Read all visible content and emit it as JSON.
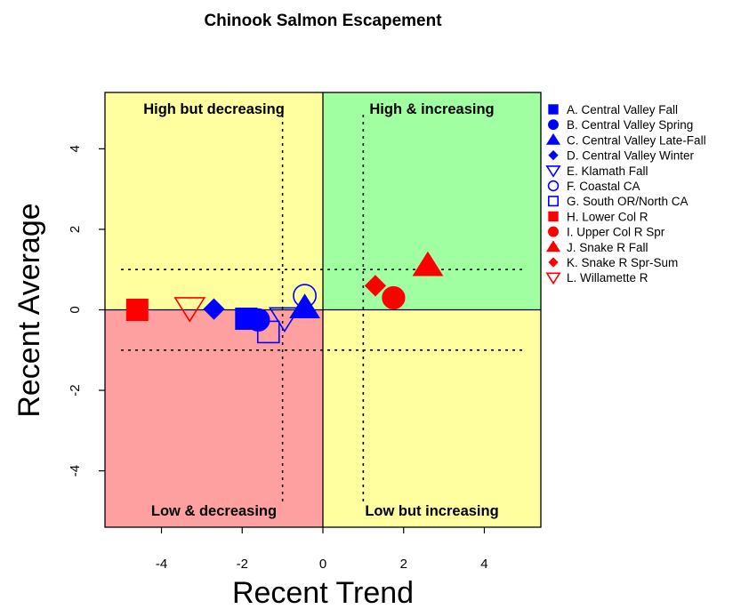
{
  "chart_data": {
    "type": "scatter",
    "title": "Chinook Salmon Escapement",
    "xlabel": "Recent Trend",
    "ylabel": "Recent Average",
    "xlim": [
      -5.4,
      5.4
    ],
    "ylim": [
      -5.4,
      5.4
    ],
    "x_ticks": [
      "-4",
      "-2",
      "0",
      "2",
      "4"
    ],
    "y_ticks": [
      "-4",
      "-2",
      "0",
      "2",
      "4"
    ],
    "quadrants": {
      "top_left": {
        "label": "High but decreasing",
        "color": "#ffffa0"
      },
      "top_right": {
        "label": "High & increasing",
        "color": "#a0ffa0"
      },
      "bottom_left": {
        "label": "Low & decreasing",
        "color": "#ffa0a0"
      },
      "bottom_right": {
        "label": "Low but increasing",
        "color": "#ffffa0"
      }
    },
    "reference_lines": {
      "vertical": [
        -1,
        1
      ],
      "horizontal": [
        -1,
        1
      ],
      "style": "dotted"
    },
    "legend_position": "right",
    "series": [
      {
        "name": "A. Central Valley Fall",
        "shape": "square",
        "filled": true,
        "color": "#0000ff",
        "x": -1.9,
        "y": -0.22
      },
      {
        "name": "B. Central Valley Spring",
        "shape": "circle",
        "filled": true,
        "color": "#0000ff",
        "x": -1.6,
        "y": -0.25
      },
      {
        "name": "C. Central Valley Late-Fall",
        "shape": "triangle",
        "filled": true,
        "color": "#0000ff",
        "x": -0.45,
        "y": 0.05
      },
      {
        "name": "D. Central Valley Winter",
        "shape": "diamond",
        "filled": true,
        "color": "#0000ff",
        "x": -2.7,
        "y": 0.02
      },
      {
        "name": "E. Klamath Fall",
        "shape": "triangle-down",
        "filled": false,
        "color": "#0000ff",
        "x": -0.95,
        "y": -0.2
      },
      {
        "name": "F. Coastal CA",
        "shape": "circle",
        "filled": false,
        "color": "#0000ff",
        "x": -0.45,
        "y": 0.35
      },
      {
        "name": "G. South OR/North CA",
        "shape": "square",
        "filled": false,
        "color": "#0000ff",
        "x": -1.35,
        "y": -0.55
      },
      {
        "name": "H. Lower Col R",
        "shape": "square",
        "filled": true,
        "color": "#ff0000",
        "x": -4.6,
        "y": 0.0
      },
      {
        "name": "I. Upper Col R Spr",
        "shape": "circle",
        "filled": true,
        "color": "#ff0000",
        "x": 1.75,
        "y": 0.3
      },
      {
        "name": "J. Snake R Fall",
        "shape": "triangle",
        "filled": true,
        "color": "#ff0000",
        "x": 2.6,
        "y": 1.1
      },
      {
        "name": "K. Snake R Spr-Sum",
        "shape": "diamond",
        "filled": true,
        "color": "#ff0000",
        "x": 1.3,
        "y": 0.6
      },
      {
        "name": "L. Willamette R",
        "shape": "triangle-down",
        "filled": false,
        "color": "#ff0000",
        "x": -3.3,
        "y": 0.05
      }
    ]
  }
}
